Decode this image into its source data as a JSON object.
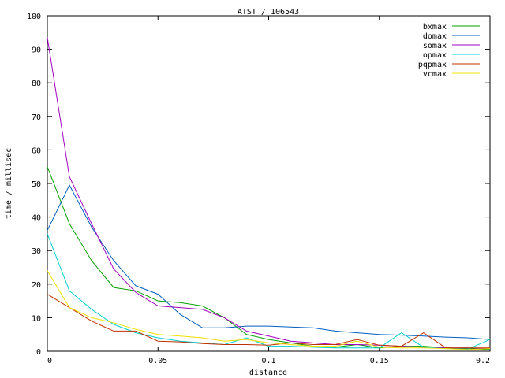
{
  "chart_data": {
    "type": "line",
    "title": "ATST / 106543",
    "xlabel": "distance",
    "ylabel": "time / millisec",
    "xlim": [
      0,
      0.2
    ],
    "ylim": [
      0,
      100
    ],
    "xticks": [
      0,
      0.05,
      0.1,
      0.15,
      0.2
    ],
    "xtick_labels": [
      "0",
      "0.05",
      "0.1",
      "0.15",
      "0.2"
    ],
    "yticks": [
      0,
      10,
      20,
      30,
      40,
      50,
      60,
      70,
      80,
      90,
      100
    ],
    "ytick_labels": [
      "0",
      "10",
      "20",
      "30",
      "40",
      "50",
      "60",
      "70",
      "80",
      "90",
      "100"
    ],
    "grid": false,
    "legend_position": "top-right",
    "x": [
      0,
      0.01,
      0.02,
      0.03,
      0.04,
      0.05,
      0.06,
      0.07,
      0.08,
      0.09,
      0.1,
      0.11,
      0.12,
      0.13,
      0.14,
      0.15,
      0.16,
      0.17,
      0.18,
      0.19,
      0.2
    ],
    "series": [
      {
        "name": "bxmax",
        "color": "#00a000",
        "values": [
          55,
          38,
          27,
          19,
          18,
          15,
          14.5,
          13.5,
          10,
          5,
          3.5,
          2.5,
          1.5,
          1.2,
          2,
          1,
          1.5,
          1.5,
          1,
          0.8,
          0.5
        ]
      },
      {
        "name": "domax",
        "color": "#0060c0",
        "values": [
          36,
          49.5,
          37,
          27,
          19.5,
          17,
          11,
          7,
          7,
          7.5,
          7.5,
          7.2,
          7,
          6,
          5.5,
          5,
          4.8,
          4.5,
          4.2,
          4,
          3.5
        ]
      },
      {
        "name": "somax",
        "color": "#a000c0",
        "values": [
          93.5,
          52,
          38,
          24.5,
          17.5,
          13.5,
          13,
          12.5,
          10,
          6,
          4.5,
          3,
          2.5,
          2,
          2,
          1.8,
          1.5,
          1.2,
          1,
          1,
          0.8
        ]
      },
      {
        "name": "opmax",
        "color": "#00d0d0",
        "values": [
          35,
          18,
          12.5,
          8,
          5.5,
          4,
          3,
          2.5,
          2,
          4,
          1.5,
          1.5,
          1.2,
          1,
          1,
          1,
          5.5,
          1.2,
          0.8,
          0.6,
          3.5
        ]
      },
      {
        "name": "pqpmax",
        "color": "#c03000",
        "values": [
          17,
          13,
          9,
          6,
          6,
          3,
          2.8,
          2.3,
          2,
          2,
          1.8,
          2.5,
          2,
          2,
          3.5,
          1.8,
          1.5,
          5.5,
          1,
          1,
          1
        ]
      },
      {
        "name": "vcmax",
        "color": "#f0e000",
        "values": [
          24,
          13,
          10,
          8.5,
          6.5,
          5,
          4.5,
          4,
          3,
          3.5,
          2.5,
          2,
          1.5,
          1.5,
          3,
          1.2,
          1,
          1,
          0.8,
          0.5,
          0.8
        ]
      }
    ]
  }
}
